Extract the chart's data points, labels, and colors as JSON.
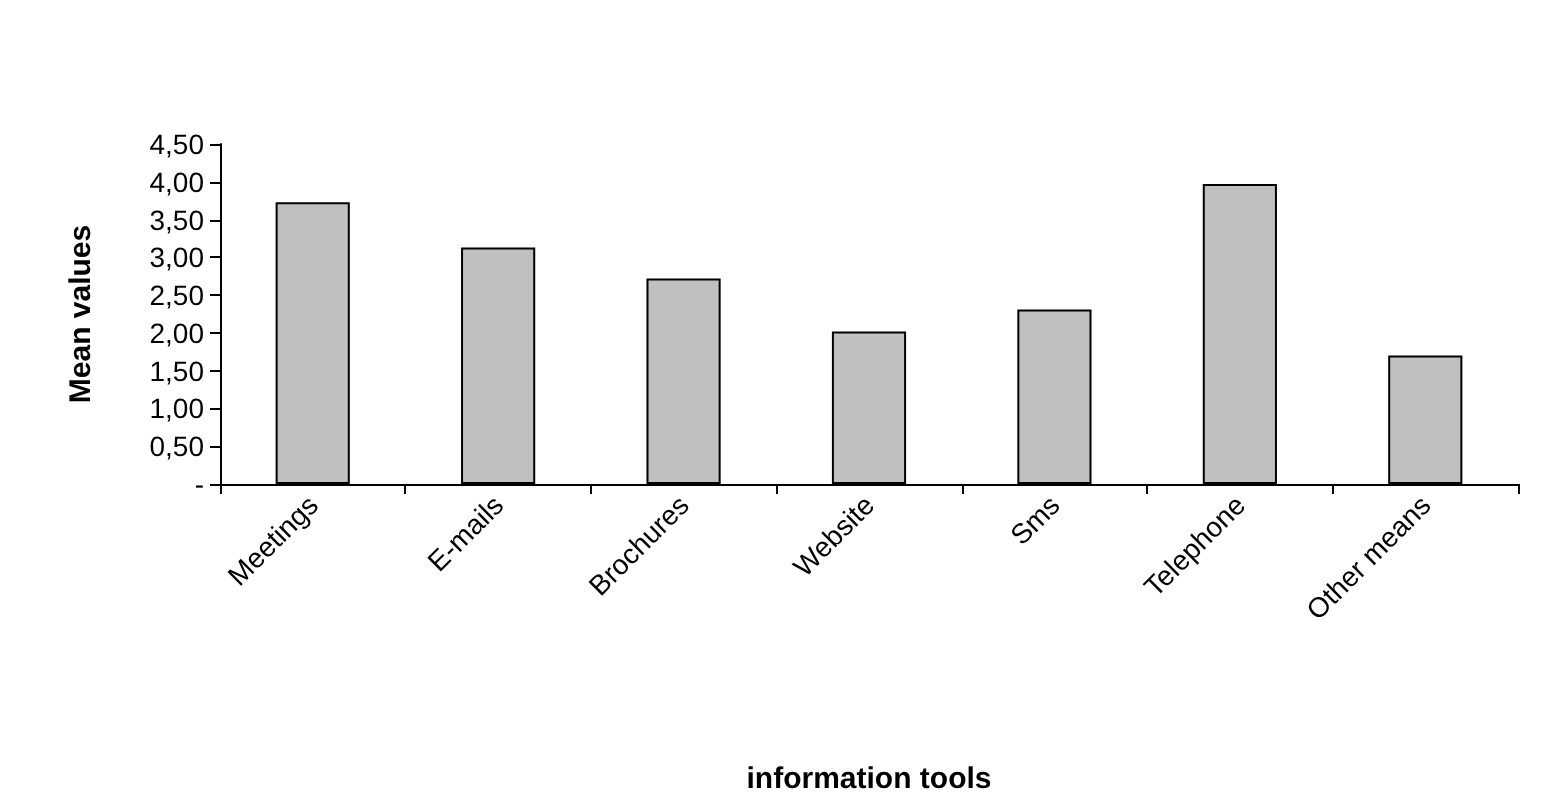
{
  "chart_data": {
    "type": "bar",
    "xlabel": "information tools",
    "ylabel": "Mean values",
    "categories": [
      "Meetings",
      "E-mails",
      "Brochures",
      "Website",
      "Sms",
      "Telephone",
      "Other means"
    ],
    "values": [
      3.73,
      3.13,
      2.72,
      2.02,
      2.31,
      3.97,
      1.7
    ],
    "color": "#c0c0c0",
    "ylim": [
      0,
      4.5
    ],
    "yticks": [
      {
        "value": 0,
        "label": "-"
      },
      {
        "value": 0.5,
        "label": "0,50"
      },
      {
        "value": 1,
        "label": "1,00"
      },
      {
        "value": 1.5,
        "label": "1,50"
      },
      {
        "value": 2,
        "label": "2,00"
      },
      {
        "value": 2.5,
        "label": "2,50"
      },
      {
        "value": 3,
        "label": "3,00"
      },
      {
        "value": 3.5,
        "label": "3,50"
      },
      {
        "value": 4,
        "label": "4,00"
      },
      {
        "value": 4.5,
        "label": "4,50"
      }
    ],
    "grid": false
  }
}
